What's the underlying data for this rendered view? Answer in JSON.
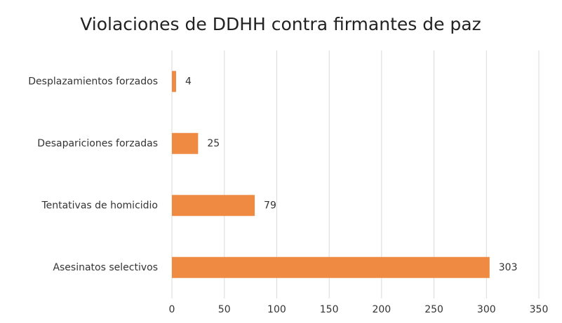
{
  "chart_data": {
    "type": "hbar",
    "title": "Violaciones de DDHH contra firmantes de paz",
    "categories": [
      "Desplazamientos forzados",
      "Desapariciones forzadas",
      "Tentativas de homicidio",
      "Asesinatos selectivos"
    ],
    "values": [
      4,
      25,
      79,
      303
    ],
    "color": "#ef8a43",
    "xlim": [
      0,
      350
    ],
    "xticks": [
      0,
      50,
      100,
      150,
      200,
      250,
      300,
      350
    ],
    "grid": true
  }
}
